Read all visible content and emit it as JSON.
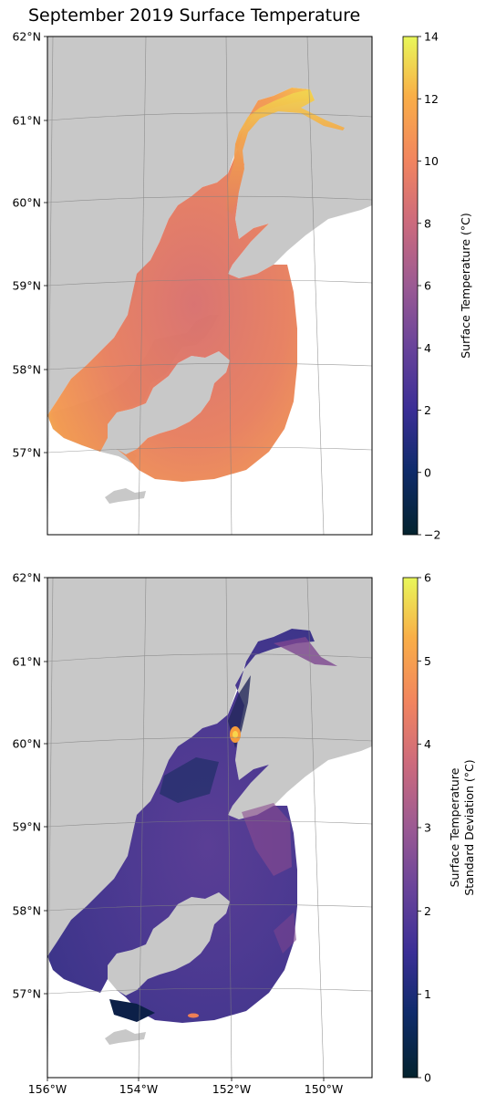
{
  "figure": {
    "title": "September 2019 Surface Temperature"
  },
  "axes": {
    "lat_ticks": [
      {
        "value": 62,
        "label": "62°N"
      },
      {
        "value": 61,
        "label": "61°N"
      },
      {
        "value": 60,
        "label": "60°N"
      },
      {
        "value": 59,
        "label": "59°N"
      },
      {
        "value": 58,
        "label": "58°N"
      },
      {
        "value": 57,
        "label": "57°N"
      }
    ],
    "lon_ticks": [
      {
        "value": -156,
        "label": "156°W"
      },
      {
        "value": -154,
        "label": "154°W"
      },
      {
        "value": -152,
        "label": "152°W"
      },
      {
        "value": -150,
        "label": "150°W"
      }
    ]
  },
  "panels": [
    {
      "name": "mean-temperature-map",
      "colorbar": {
        "label": "Surface Temperature (°C)",
        "label_line2": "",
        "min": -2,
        "max": 14,
        "ticks": [
          {
            "value": 14,
            "label": "14"
          },
          {
            "value": 12,
            "label": "12"
          },
          {
            "value": 10,
            "label": "10"
          },
          {
            "value": 8,
            "label": "8"
          },
          {
            "value": 6,
            "label": "6"
          },
          {
            "value": 4,
            "label": "4"
          },
          {
            "value": 2,
            "label": "2"
          },
          {
            "value": 0,
            "label": "0"
          },
          {
            "value": -2,
            "label": "−2"
          }
        ]
      }
    },
    {
      "name": "std-deviation-map",
      "colorbar": {
        "label": "Surface Temperature",
        "label_line2": "Standard Deviation (°C)",
        "min": 0,
        "max": 6,
        "ticks": [
          {
            "value": 6,
            "label": "6"
          },
          {
            "value": 5,
            "label": "5"
          },
          {
            "value": 4,
            "label": "4"
          },
          {
            "value": 3,
            "label": "3"
          },
          {
            "value": 2,
            "label": "2"
          },
          {
            "value": 1,
            "label": "1"
          },
          {
            "value": 0,
            "label": "0"
          }
        ]
      }
    }
  ],
  "colors": {
    "land": "#c8c8c8",
    "map_background": "#ffffff",
    "gridline": "#808080",
    "colormap": "thermal",
    "temperature_main": "#e8855a",
    "std_main": "#4a3a8e"
  }
}
